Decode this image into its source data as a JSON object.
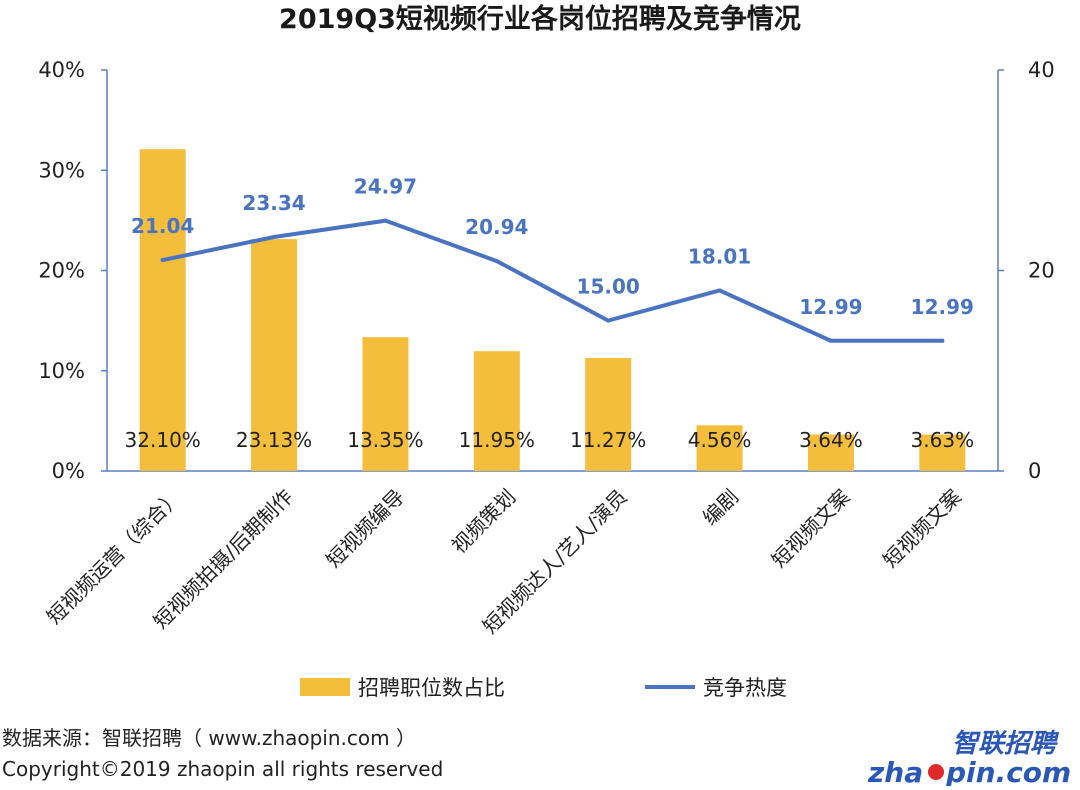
{
  "title": "2019Q3短视频行业各岗位招聘及竞争情况",
  "chart_data": {
    "type": "bar",
    "categories": [
      "短视频运营（综合）",
      "短视频拍摄/后期制作",
      "短视频编导",
      "视频策划",
      "短视频达人/艺人/演员",
      "编剧",
      "短视频文案",
      "短视频文案"
    ],
    "series": [
      {
        "name": "招聘职位数占比",
        "type": "bar",
        "axis": "left",
        "color": "#f5bd3c",
        "values": [
          32.1,
          23.13,
          13.35,
          11.95,
          11.27,
          4.56,
          3.64,
          3.63
        ],
        "labels": [
          "32.10%",
          "23.13%",
          "13.35%",
          "11.95%",
          "11.27%",
          "4.56%",
          "3.64%",
          "3.63%"
        ]
      },
      {
        "name": "竞争热度",
        "type": "line",
        "axis": "right",
        "color": "#4a74c2",
        "values": [
          21.04,
          23.34,
          24.97,
          20.94,
          15.0,
          18.01,
          12.99,
          12.99
        ],
        "labels": [
          "21.04",
          "23.34",
          "24.97",
          "20.94",
          "15.00",
          "18.01",
          "12.99",
          "12.99"
        ]
      }
    ],
    "y_left": {
      "min": 0,
      "max": 40,
      "ticks": [
        "0%",
        "10%",
        "20%",
        "30%",
        "40%"
      ]
    },
    "y_right": {
      "min": 0,
      "max": 40,
      "ticks": [
        "0",
        "20",
        "40"
      ]
    },
    "legend_position": "bottom",
    "grid": false
  },
  "source": "数据来源：智联招聘（ www.zhaopin.com ）",
  "copyright": "Copyright©2019 zhaopin all rights reserved",
  "logo": {
    "cn": "智联招聘",
    "en_left": "zha",
    "en_right": "pin.com"
  }
}
